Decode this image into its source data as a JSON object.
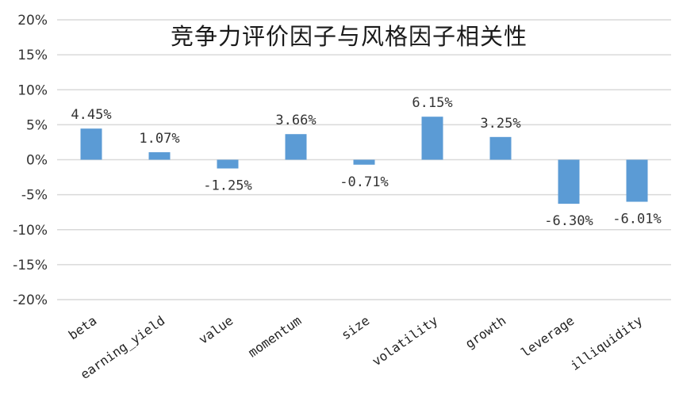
{
  "chart_data": {
    "type": "bar",
    "title": "竞争力评价因子与风格因子相关性",
    "xlabel": "",
    "ylabel": "",
    "ylim": [
      -20,
      20
    ],
    "yticks": [
      "20%",
      "15%",
      "10%",
      "5%",
      "0%",
      "-5%",
      "-10%",
      "-15%",
      "-20%"
    ],
    "categories": [
      "beta",
      "earning_yield",
      "value",
      "momentum",
      "size",
      "volatility",
      "growth",
      "leverage",
      "illiquidity"
    ],
    "values": [
      4.45,
      1.07,
      -1.25,
      3.66,
      -0.71,
      6.15,
      3.25,
      -6.3,
      -6.01
    ],
    "value_labels": [
      "4.45%",
      "1.07%",
      "-1.25%",
      "3.66%",
      "-0.71%",
      "6.15%",
      "3.25%",
      "-6.30%",
      "-6.01%"
    ],
    "grid": true,
    "legend": "none",
    "colors": {
      "bar": "#5b9bd5",
      "grid": "#d9d9d9"
    }
  }
}
